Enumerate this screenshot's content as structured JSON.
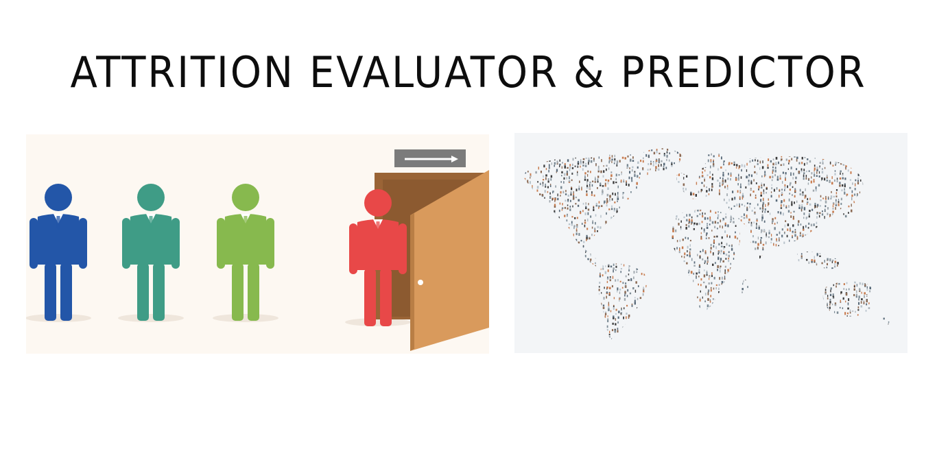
{
  "header": {
    "title": "ATTRITION EVALUATOR & PREDICTOR"
  },
  "illustration_left": {
    "subject": "employee-attrition-illustration",
    "figures": [
      {
        "name": "employee-figure-blue",
        "color": "#2356a8"
      },
      {
        "name": "employee-figure-teal",
        "color": "#3f9c86"
      },
      {
        "name": "employee-figure-green",
        "color": "#87b94e"
      },
      {
        "name": "employee-figure-red",
        "color": "#e84848"
      }
    ],
    "door_color": "#d99a5c",
    "door_frame_color": "#9a6436",
    "exit_sign_color": "#7b7b7b"
  },
  "illustration_right": {
    "subject": "world-map-of-people",
    "dot_colors": [
      "#3b3b3b",
      "#7b8a94",
      "#b9c4cc",
      "#c77b4e",
      "#8b6a54",
      "#5a6b7a",
      "#a0a8ae"
    ]
  }
}
